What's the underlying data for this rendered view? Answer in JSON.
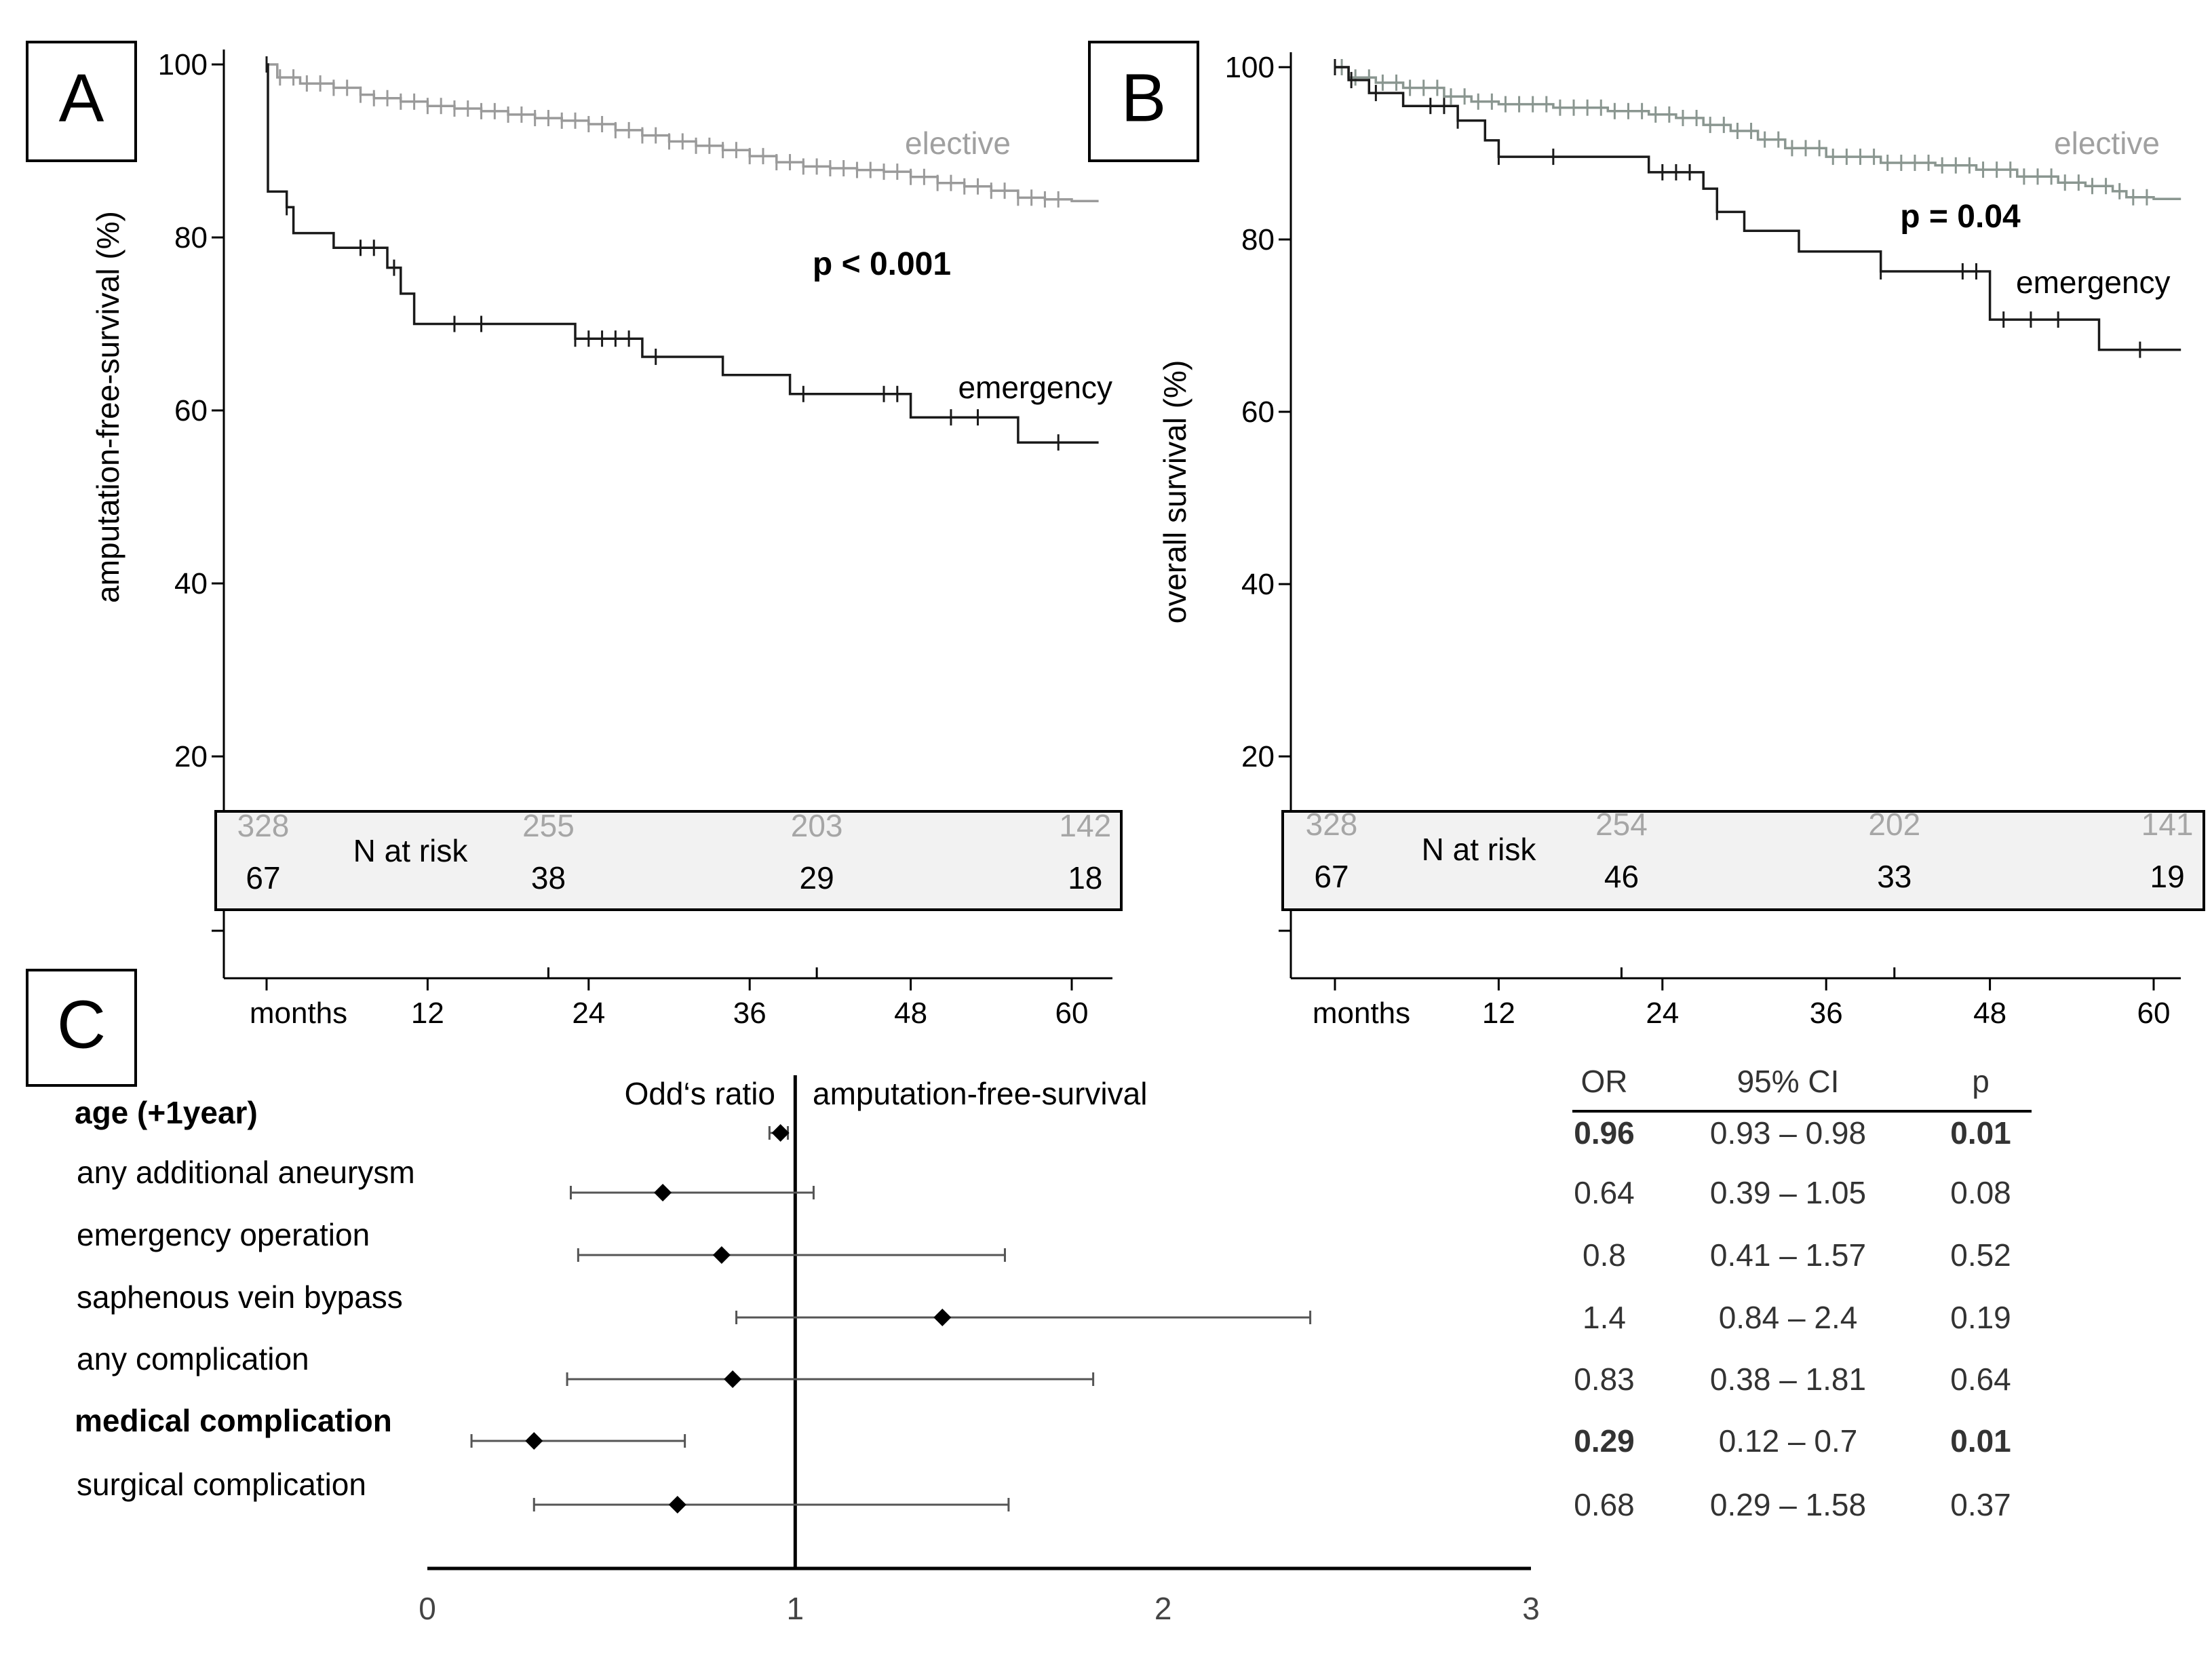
{
  "chart_data": [
    {
      "panel": "A",
      "type": "line",
      "subtype": "kaplan-meier",
      "ylabel": "amputation-free-survival (%)",
      "xlabel": "months",
      "yticks": [
        20,
        40,
        60,
        80,
        100
      ],
      "xticks": [
        12,
        24,
        36,
        48,
        60
      ],
      "xlim": [
        -3,
        63
      ],
      "ylim": [
        -3,
        100
      ],
      "pvalue": "p < 0.001",
      "series": [
        {
          "name": "elective",
          "color": "#9a9a9a",
          "x": [
            0,
            0.8,
            2.5,
            5,
            7,
            8,
            10,
            12,
            14,
            16,
            18,
            20,
            22,
            24,
            26,
            28,
            30,
            32,
            34,
            36,
            38,
            40,
            42,
            44,
            46,
            48,
            50,
            52,
            54,
            56,
            58,
            60,
            62
          ],
          "y": [
            100,
            98.5,
            97.8,
            97.3,
            96.5,
            96.1,
            95.7,
            95.2,
            94.9,
            94.6,
            94.2,
            93.8,
            93.5,
            93.1,
            92.4,
            91.8,
            91.1,
            90.6,
            90.1,
            89.4,
            88.7,
            88.2,
            88,
            87.8,
            87.6,
            87,
            86.3,
            85.9,
            85.4,
            84.6,
            84.4,
            84.2,
            84.2
          ],
          "censored": [
            1,
            2,
            3,
            4,
            5,
            6,
            7,
            8,
            9,
            10,
            11,
            12,
            13,
            14,
            15,
            16,
            17,
            18,
            19,
            20,
            21,
            22,
            23,
            24,
            25,
            26,
            27,
            28,
            29,
            30,
            31,
            32,
            33,
            34,
            35,
            36,
            37,
            38,
            39,
            40,
            41,
            42,
            43,
            44,
            45,
            46,
            47,
            48,
            49,
            50,
            51,
            52,
            53,
            54,
            55,
            56,
            57,
            58,
            59
          ]
        },
        {
          "name": "emergency",
          "color": "#1a1a1a",
          "x": [
            0,
            0.1,
            1.5,
            2,
            5,
            9,
            10,
            11,
            12,
            23,
            28,
            34,
            39,
            48,
            56,
            62
          ],
          "y": [
            100,
            85.3,
            83.5,
            80.5,
            78.8,
            76.5,
            73.5,
            70,
            70,
            68.3,
            66.2,
            64.1,
            61.9,
            59.2,
            56.3,
            56.3
          ],
          "censored": [
            0,
            1.5,
            7,
            8,
            9.5,
            14,
            16,
            23,
            24,
            25,
            26,
            27,
            29,
            40,
            46,
            47,
            51,
            53,
            59
          ]
        }
      ],
      "risk_table": {
        "title": "N at risk",
        "times": [
          0,
          21,
          41,
          61
        ],
        "elective": [
          "328",
          "255",
          "203",
          "142"
        ],
        "emergency": [
          "67",
          "38",
          "29",
          "18"
        ]
      }
    },
    {
      "panel": "B",
      "type": "line",
      "subtype": "kaplan-meier",
      "ylabel": "overall survival (%)",
      "xlabel": "months",
      "yticks": [
        20,
        40,
        60,
        80,
        100
      ],
      "xticks": [
        12,
        24,
        36,
        48,
        60
      ],
      "xlim": [
        -3,
        63
      ],
      "ylim": [
        -3,
        100
      ],
      "pvalue": "p = 0.04",
      "series": [
        {
          "name": "elective",
          "color": "#8a9690",
          "x": [
            0,
            1,
            3,
            5,
            8,
            10,
            12,
            16,
            20,
            23,
            25,
            27,
            29,
            31,
            33,
            36,
            40,
            44,
            47,
            50,
            53,
            55,
            57,
            58,
            60,
            62
          ],
          "y": [
            100,
            98.8,
            98.2,
            97.6,
            96.6,
            96,
            95.7,
            95.3,
            94.9,
            94.5,
            94.1,
            93.3,
            92.6,
            91.6,
            90.6,
            89.6,
            88.9,
            88.6,
            88.1,
            87.3,
            86.6,
            86.2,
            85.6,
            84.9,
            84.7,
            84.7
          ],
          "censored": [
            0.5,
            1.5,
            2.5,
            3.5,
            4.5,
            5.5,
            6.5,
            7.5,
            8.5,
            9.5,
            10.5,
            11.5,
            12.5,
            13.5,
            14.5,
            15.5,
            16.5,
            17.5,
            18.5,
            19.5,
            20.5,
            21.5,
            22.5,
            23.5,
            24.5,
            25.5,
            26.5,
            27.5,
            28.5,
            29.5,
            30.5,
            31.5,
            32.5,
            33.5,
            34.5,
            35.5,
            36.5,
            37.5,
            38.5,
            39.5,
            40.5,
            41.5,
            42.5,
            43.5,
            44.5,
            45.5,
            46.5,
            47.5,
            48.5,
            49.5,
            50.5,
            51.5,
            52.5,
            53.5,
            54.5,
            55.5,
            56.5,
            57.5,
            58.5,
            59.5
          ]
        },
        {
          "name": "emergency",
          "color": "#1a1a1a",
          "x": [
            0,
            1,
            2.5,
            5,
            9,
            11,
            12,
            23,
            27,
            28,
            30,
            34,
            40,
            48,
            56,
            62
          ],
          "y": [
            100,
            98.5,
            97,
            95.5,
            93.8,
            91.5,
            89.6,
            87.8,
            85.9,
            83.2,
            81,
            78.6,
            76.3,
            70.7,
            67.2,
            67.2
          ],
          "censored": [
            0,
            1.2,
            3,
            7,
            8,
            9,
            12,
            16,
            24,
            25,
            26,
            28,
            40,
            46,
            47,
            49,
            51,
            53,
            59
          ]
        }
      ],
      "risk_table": {
        "title": "N at risk",
        "times": [
          0,
          21,
          41,
          61
        ],
        "elective": [
          "328",
          "254",
          "202",
          "141"
        ],
        "emergency": [
          "67",
          "46",
          "33",
          "19"
        ]
      }
    },
    {
      "panel": "C",
      "type": "forest",
      "left_header": "Odd‘s ratio",
      "right_header": "amputation-free-survival",
      "xticks": [
        "0",
        "1",
        "2",
        "3"
      ],
      "xlim": [
        0,
        3
      ],
      "reference": 1,
      "columns": [
        "OR",
        "95% CI",
        "p"
      ],
      "rows": [
        {
          "label": "age (+1year)",
          "bold": true,
          "or": 0.96,
          "lo": 0.93,
          "hi": 0.98,
          "or_text": "0.96",
          "ci_text": "0.93 – 0.98",
          "p_text": "0.01",
          "p_bold": true
        },
        {
          "label": "any additional aneurysm",
          "bold": false,
          "or": 0.64,
          "lo": 0.39,
          "hi": 1.05,
          "or_text": "0.64",
          "ci_text": "0.39 – 1.05",
          "p_text": "0.08",
          "p_bold": false
        },
        {
          "label": "emergency operation",
          "bold": false,
          "or": 0.8,
          "lo": 0.41,
          "hi": 1.57,
          "or_text": "0.8",
          "ci_text": "0.41 – 1.57",
          "p_text": "0.52",
          "p_bold": false
        },
        {
          "label": "saphenous vein bypass",
          "bold": false,
          "or": 1.4,
          "lo": 0.84,
          "hi": 2.4,
          "or_text": "1.4",
          "ci_text": "0.84 – 2.4",
          "p_text": "0.19",
          "p_bold": false
        },
        {
          "label": "any complication",
          "bold": false,
          "or": 0.83,
          "lo": 0.38,
          "hi": 1.81,
          "or_text": "0.83",
          "ci_text": "0.38 – 1.81",
          "p_text": "0.64",
          "p_bold": false
        },
        {
          "label": "medical complication",
          "bold": true,
          "or": 0.29,
          "lo": 0.12,
          "hi": 0.7,
          "or_text": "0.29",
          "ci_text": "0.12 – 0.7",
          "p_text": "0.01",
          "p_bold": true
        },
        {
          "label": "surgical complication",
          "bold": false,
          "or": 0.68,
          "lo": 0.29,
          "hi": 1.58,
          "or_text": "0.68",
          "ci_text": "0.29 – 1.58",
          "p_text": "0.37",
          "p_bold": false
        }
      ]
    }
  ]
}
